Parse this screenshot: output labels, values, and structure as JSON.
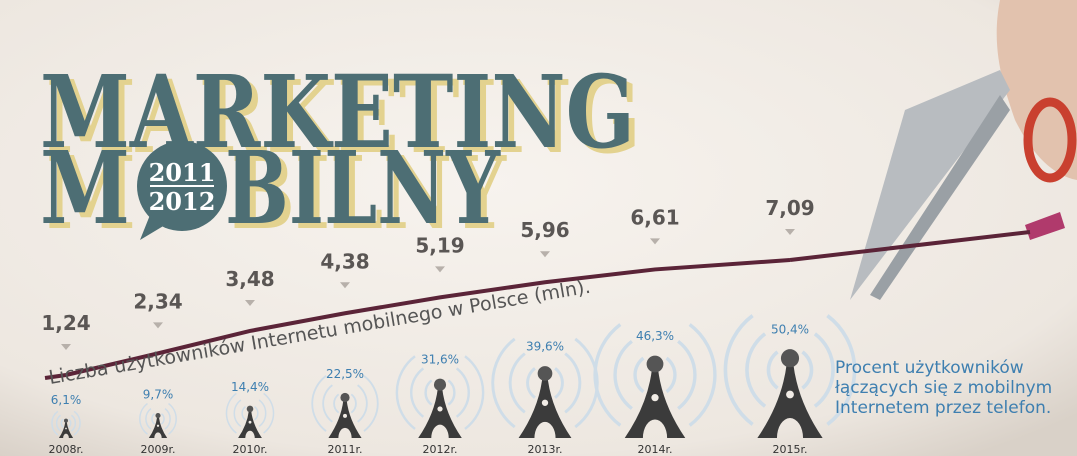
{
  "chart_data": {
    "type": "line",
    "title": "MARKETING",
    "subtitle": [
      "M",
      "BILNY"
    ],
    "badge": [
      "2011",
      "2012"
    ],
    "categories": [
      "2008r.",
      "2009r.",
      "2010r.",
      "2011r.",
      "2012r.",
      "2013r.",
      "2014r.",
      "2015r."
    ],
    "series": [
      {
        "name": "Liczba użytkowników Internetu mobilnego w Polsce (mln).",
        "color": "#5b2438",
        "values": [
          1.24,
          2.34,
          3.48,
          4.38,
          5.19,
          5.96,
          6.61,
          7.09
        ],
        "value_labels": [
          "1,24",
          "2,34",
          "3,48",
          "4,38",
          "5,19",
          "5,96",
          "6,61",
          "7,09"
        ]
      },
      {
        "name": "Procent użytkowników łączących się z mobilnym Internetem przez telefon.",
        "color": "#3e7fb0",
        "values": [
          6.1,
          9.7,
          14.4,
          22.5,
          31.6,
          39.6,
          46.3,
          50.4
        ],
        "value_labels": [
          "6,1%",
          "9,7%",
          "14,4%",
          "22,5%",
          "31,6%",
          "39,6%",
          "46,3%",
          "50,4%"
        ]
      }
    ]
  }
}
